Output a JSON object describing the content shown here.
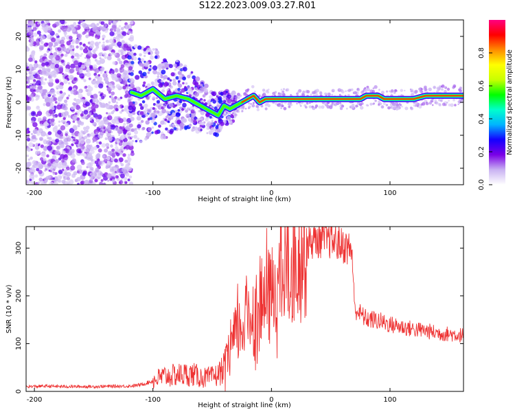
{
  "figure": {
    "title": "S122.2023.009.03.27.R01"
  },
  "chart_data": [
    {
      "type": "heatmap",
      "xlabel": "Height of straight line (km)",
      "ylabel": "Frequency (Hz)",
      "xlim": [
        -207,
        162
      ],
      "ylim": [
        -25,
        25
      ],
      "xticks": [
        -200,
        -100,
        0,
        100
      ],
      "yticks": [
        20,
        10,
        0,
        -10,
        -20
      ],
      "colorbar": {
        "label": "Normalized spectral amplitude",
        "range": [
          0,
          1
        ],
        "ticks": [
          0.0,
          0.2,
          0.4,
          0.6,
          0.8
        ],
        "colors": [
          "#ffffff",
          "#c9b2f2",
          "#7a00e6",
          "#1400ff",
          "#00b4ff",
          "#00ffcc",
          "#00ff00",
          "#c8ff00",
          "#ffff00",
          "#ff8c00",
          "#ff0000",
          "#ff0080"
        ]
      },
      "ridge": {
        "x": [
          -118,
          -110,
          -100,
          -90,
          -80,
          -70,
          -60,
          -55,
          -50,
          -45,
          -40,
          -35,
          -30,
          -25,
          -20,
          -15,
          -10,
          -5,
          0,
          10,
          30,
          50,
          60,
          70,
          75,
          80,
          90,
          95,
          100,
          110,
          120,
          130,
          140,
          150,
          162
        ],
        "y": [
          3,
          2,
          4,
          1,
          2,
          1,
          -1,
          -2,
          -3,
          -4,
          -1,
          -2,
          -1,
          0,
          1,
          2,
          0,
          1,
          1,
          1,
          1,
          1,
          1,
          1,
          1,
          2,
          2,
          1,
          1,
          1,
          1,
          2,
          2,
          2,
          2
        ]
      }
    },
    {
      "type": "line",
      "xlabel": "Height of straight line (km)",
      "ylabel": "SNR (10 * v/v)",
      "xlim": [
        -207,
        162
      ],
      "ylim": [
        0,
        345
      ],
      "xticks": [
        -200,
        -100,
        0,
        100
      ],
      "yticks": [
        0,
        100,
        200,
        300
      ],
      "color": "#ee3333",
      "series": [
        {
          "x": [
            -207,
            -190,
            -170,
            -150,
            -130,
            -120,
            -110,
            -100,
            -95,
            -90,
            -85,
            -80,
            -75,
            -70,
            -65,
            -60,
            -55,
            -50,
            -45,
            -40,
            -35,
            -30,
            -25,
            -20,
            -15,
            -10,
            -5,
            0,
            5,
            10,
            15,
            20,
            25,
            30,
            35,
            40,
            45,
            50,
            55,
            60,
            65,
            68,
            70,
            75,
            80,
            90,
            100,
            110,
            120,
            130,
            140,
            150,
            160,
            162
          ],
          "y": [
            10,
            11,
            10,
            10,
            11,
            11,
            14,
            22,
            28,
            32,
            32,
            35,
            35,
            36,
            35,
            30,
            28,
            30,
            35,
            50,
            80,
            120,
            135,
            165,
            160,
            175,
            190,
            200,
            225,
            245,
            265,
            285,
            300,
            310,
            315,
            318,
            318,
            316,
            312,
            305,
            300,
            295,
            175,
            162,
            152,
            148,
            140,
            135,
            130,
            127,
            122,
            120,
            118,
            117
          ]
        }
      ]
    }
  ]
}
